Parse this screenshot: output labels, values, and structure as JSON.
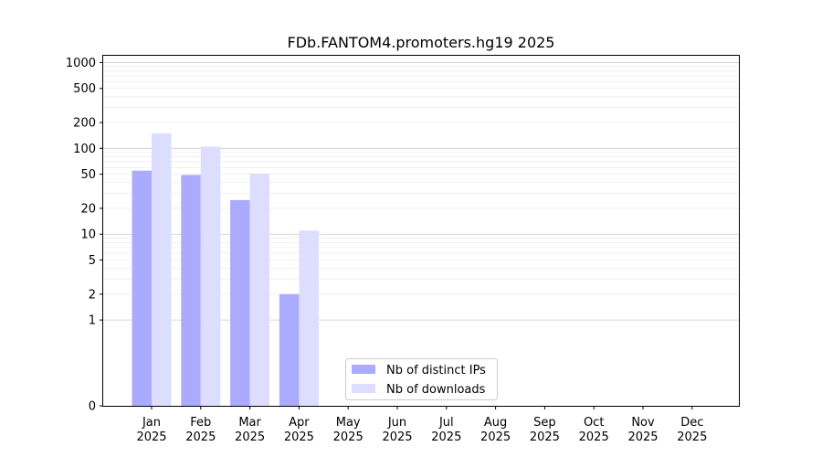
{
  "chart_data": {
    "type": "bar",
    "title": "FDb.FANTOM4.promoters.hg19 2025",
    "xlabel": "",
    "ylabel": "",
    "y_scale": "symlog",
    "ylim": [
      0,
      1200
    ],
    "y_ticks": [
      0,
      1,
      2,
      5,
      10,
      20,
      50,
      100,
      200,
      500,
      1000
    ],
    "categories": [
      "Jan\n2025",
      "Feb\n2025",
      "Mar\n2025",
      "Apr\n2025",
      "May\n2025",
      "Jun\n2025",
      "Jul\n2025",
      "Aug\n2025",
      "Sep\n2025",
      "Oct\n2025",
      "Nov\n2025",
      "Dec\n2025"
    ],
    "series": [
      {
        "name": "Nb of distinct IPs",
        "color": "#aaaaff",
        "values": [
          55,
          49,
          25,
          2,
          0,
          0,
          0,
          0,
          0,
          0,
          0,
          0
        ]
      },
      {
        "name": "Nb of downloads",
        "color": "#ddddff",
        "values": [
          150,
          105,
          51,
          11,
          0,
          0,
          0,
          0,
          0,
          0,
          0,
          0
        ]
      }
    ],
    "grid": true,
    "legend_position": "lower-center"
  }
}
